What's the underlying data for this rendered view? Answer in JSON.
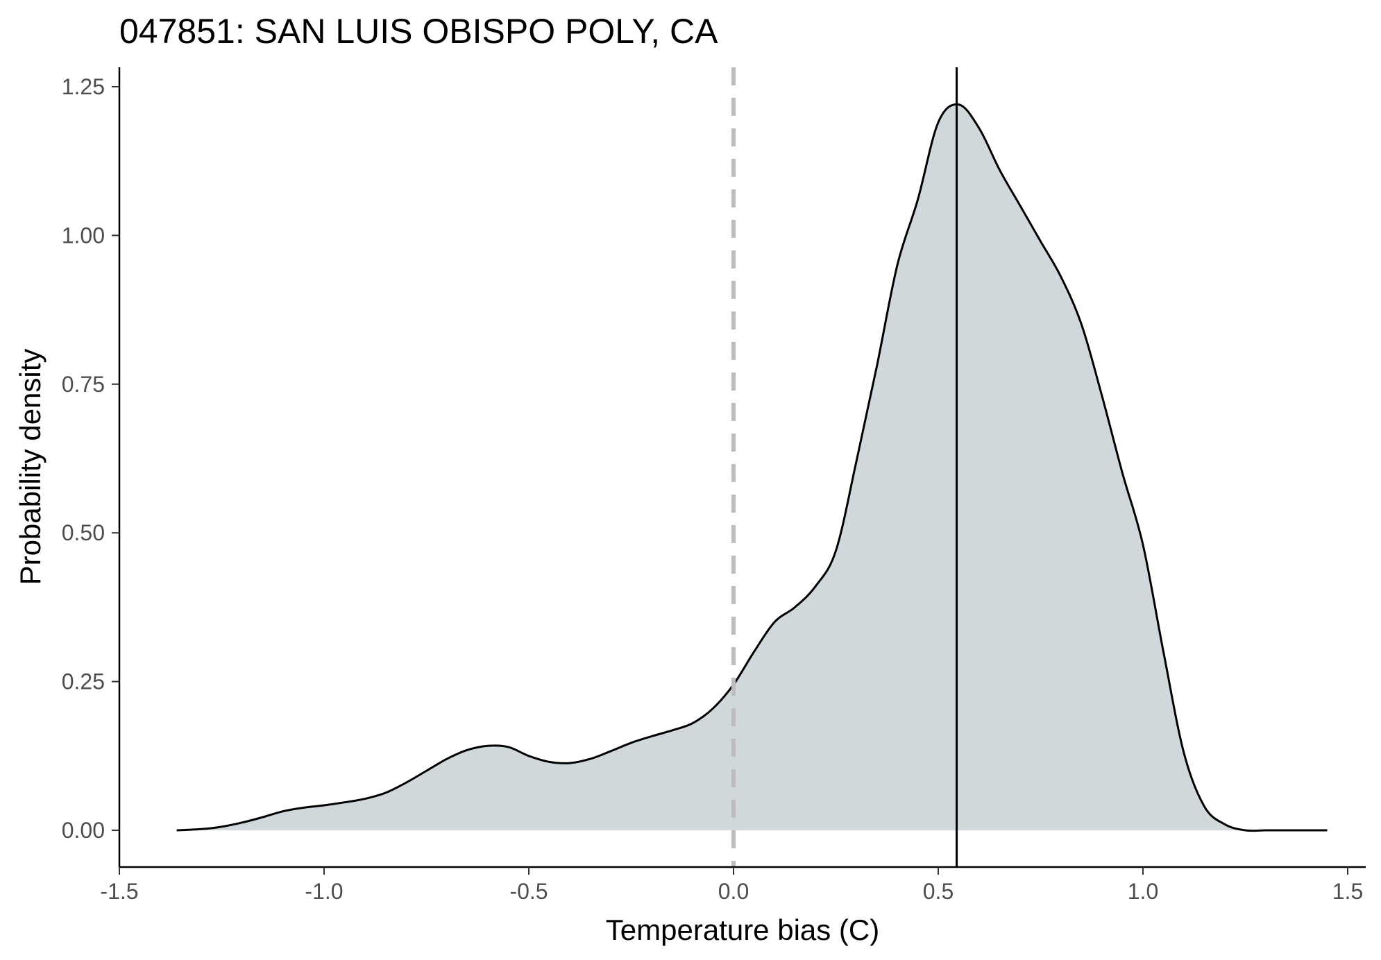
{
  "chart_data": {
    "type": "area",
    "title": "047851: SAN LUIS OBISPO POLY, CA",
    "xlabel": "Temperature bias (C)",
    "ylabel": "Probability density",
    "xlim": [
      -1.5,
      1.5
    ],
    "ylim": [
      0,
      1.25
    ],
    "x_ticks": [
      -1.5,
      -1.0,
      -0.5,
      0.0,
      0.5,
      1.0,
      1.5
    ],
    "x_tick_labels": [
      "-1.5",
      "-1.0",
      "-0.5",
      "0.0",
      "0.5",
      "1.0",
      "1.5"
    ],
    "y_ticks": [
      0.0,
      0.25,
      0.5,
      0.75,
      1.0,
      1.25
    ],
    "y_tick_labels": [
      "0.00",
      "0.25",
      "0.50",
      "0.75",
      "1.00",
      "1.25"
    ],
    "grid": false,
    "fill_color": "#d0d8dc",
    "line_color": "#000000",
    "series": [
      {
        "x": [
          -1.36,
          -1.3,
          -1.25,
          -1.2,
          -1.15,
          -1.1,
          -1.05,
          -1.0,
          -0.95,
          -0.9,
          -0.85,
          -0.8,
          -0.75,
          -0.7,
          -0.65,
          -0.6,
          -0.55,
          -0.5,
          -0.45,
          -0.4,
          -0.35,
          -0.3,
          -0.25,
          -0.2,
          -0.15,
          -0.1,
          -0.05,
          0.0,
          0.05,
          0.1,
          0.15,
          0.2,
          0.25,
          0.3,
          0.35,
          0.4,
          0.45,
          0.5,
          0.55,
          0.6,
          0.65,
          0.7,
          0.75,
          0.8,
          0.85,
          0.9,
          0.95,
          1.0,
          1.05,
          1.1,
          1.15,
          1.2,
          1.25,
          1.3,
          1.35,
          1.4,
          1.45
        ],
        "y": [
          0.0,
          0.002,
          0.006,
          0.013,
          0.022,
          0.032,
          0.038,
          0.042,
          0.047,
          0.053,
          0.063,
          0.08,
          0.1,
          0.12,
          0.135,
          0.142,
          0.14,
          0.125,
          0.115,
          0.113,
          0.12,
          0.133,
          0.147,
          0.158,
          0.168,
          0.18,
          0.205,
          0.245,
          0.3,
          0.35,
          0.375,
          0.41,
          0.47,
          0.62,
          0.78,
          0.95,
          1.06,
          1.19,
          1.22,
          1.18,
          1.11,
          1.05,
          0.99,
          0.93,
          0.85,
          0.73,
          0.6,
          0.48,
          0.3,
          0.13,
          0.04,
          0.01,
          0.0,
          0.0,
          0.0,
          0.0,
          0.0
        ]
      }
    ],
    "reference_lines": [
      {
        "x": 0.0,
        "style": "dashed",
        "color": "#bdbdbd"
      },
      {
        "x": 0.545,
        "style": "solid",
        "color": "#000000"
      }
    ]
  }
}
